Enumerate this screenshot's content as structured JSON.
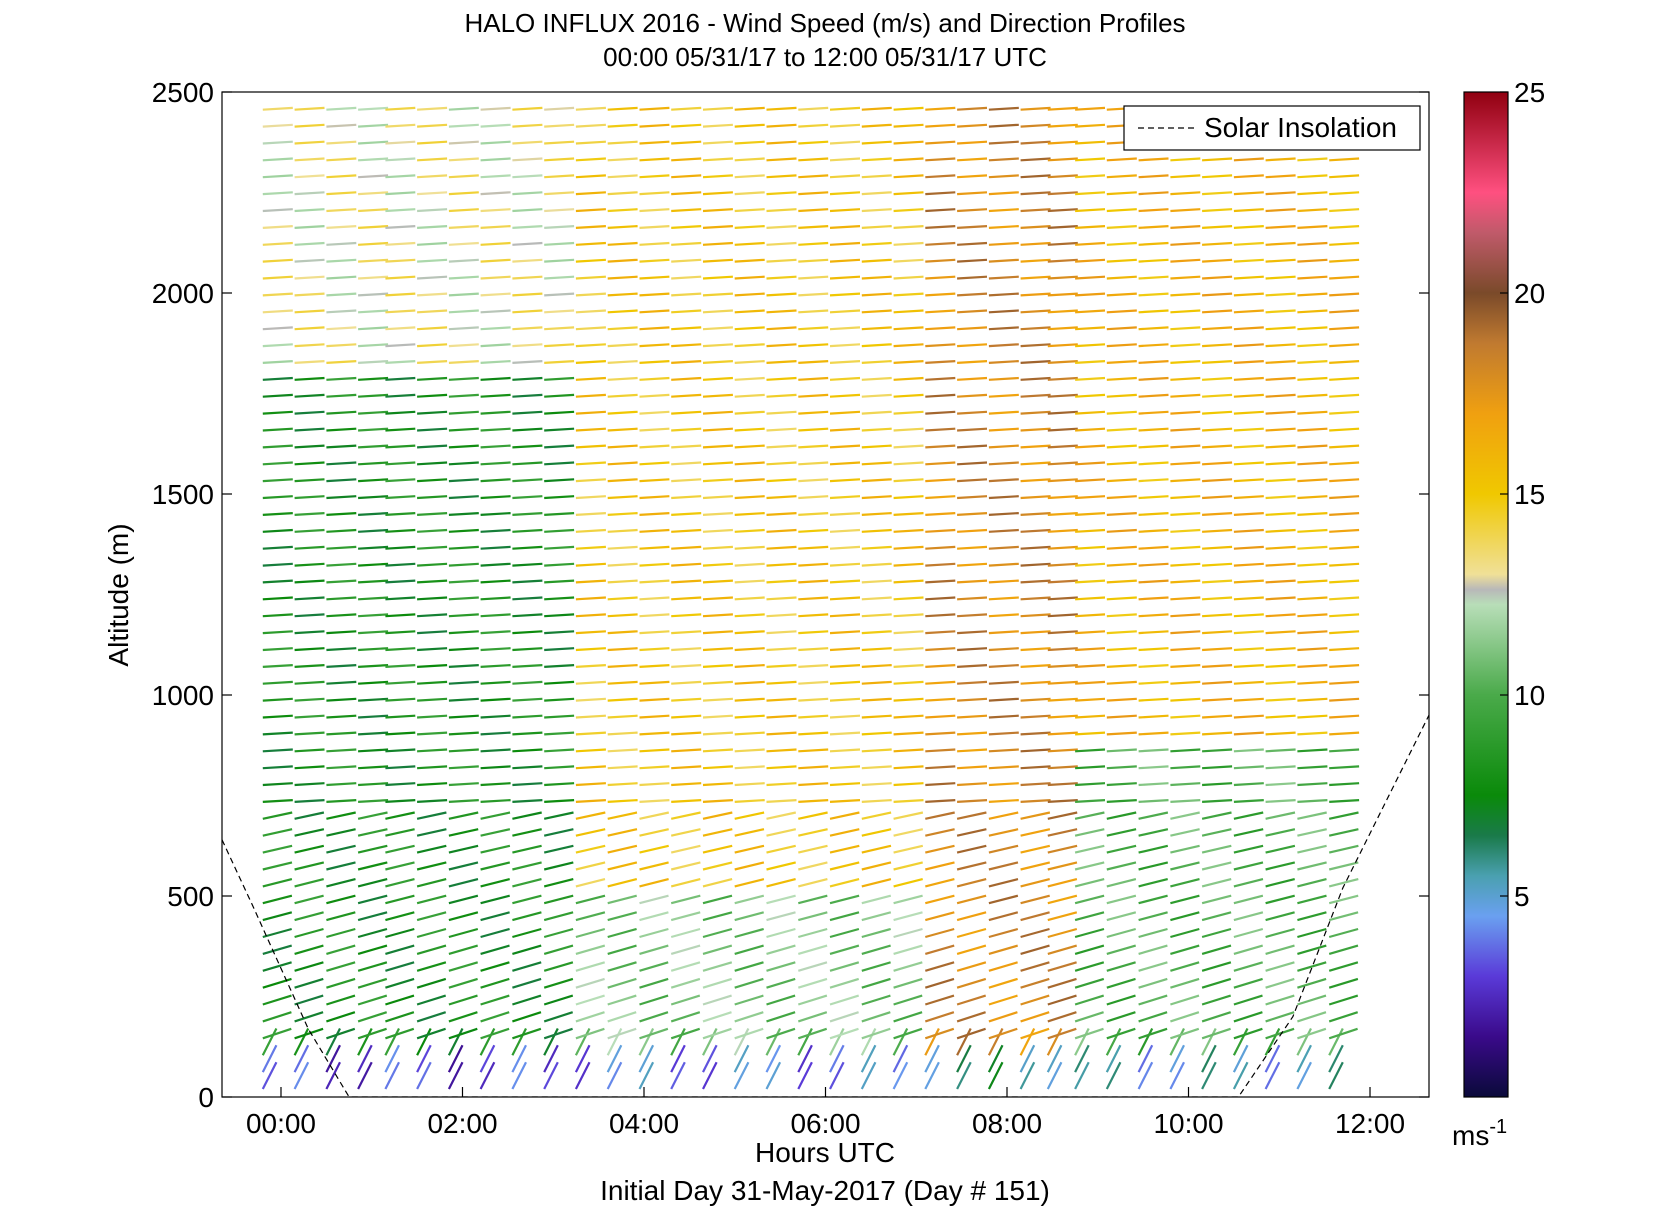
{
  "chart_data": {
    "type": "wind-barb profile",
    "title_line1": "HALO INFLUX 2016 - Wind Speed (m/s) and Direction Profiles",
    "title_line2": "00:00 05/31/17 to 12:00 05/31/17  UTC",
    "xlabel": "Hours UTC",
    "xlabel_sub": "Initial Day 31-May-2017 (Day # 151)",
    "ylabel": "Altitude (m)",
    "xlim_hours": [
      -0.65,
      12.65
    ],
    "ylim": [
      0,
      2500
    ],
    "x_ticks": [
      {
        "value": 0,
        "label": "00:00"
      },
      {
        "value": 2,
        "label": "02:00"
      },
      {
        "value": 4,
        "label": "04:00"
      },
      {
        "value": 6,
        "label": "06:00"
      },
      {
        "value": 8,
        "label": "08:00"
      },
      {
        "value": 10,
        "label": "10:00"
      },
      {
        "value": 12,
        "label": "12:00"
      }
    ],
    "y_ticks": [
      {
        "value": 0,
        "label": "0"
      },
      {
        "value": 500,
        "label": "500"
      },
      {
        "value": 1000,
        "label": "1000"
      },
      {
        "value": 1500,
        "label": "1500"
      },
      {
        "value": 2000,
        "label": "2000"
      },
      {
        "value": 2500,
        "label": "2500"
      }
    ],
    "colorbar": {
      "range": [
        0,
        25
      ],
      "ticks": [
        {
          "value": 5,
          "label": "5"
        },
        {
          "value": 10,
          "label": "10"
        },
        {
          "value": 15,
          "label": "15"
        },
        {
          "value": 20,
          "label": "20"
        },
        {
          "value": 25,
          "label": "25"
        }
      ],
      "unit": "ms",
      "unit_exp": "-1"
    },
    "legend": {
      "entries": [
        "Solar Insolation"
      ],
      "placement": "top-right",
      "style": "black dashed line"
    },
    "solar_insolation": [
      {
        "x": -0.65,
        "y": 640
      },
      {
        "x": -0.3,
        "y": 470
      },
      {
        "x": 0.3,
        "y": 170
      },
      {
        "x": 0.75,
        "y": 0
      },
      {
        "x": 10.55,
        "y": 0
      },
      {
        "x": 11.15,
        "y": 200
      },
      {
        "x": 11.7,
        "y": 520
      },
      {
        "x": 12.65,
        "y": 950
      }
    ],
    "profile_times_hours": [
      -0.2,
      0.15,
      0.5,
      0.85,
      1.15,
      1.5,
      1.85,
      2.2,
      2.55,
      2.9,
      3.25,
      3.6,
      3.95,
      4.3,
      4.65,
      5.0,
      5.35,
      5.7,
      6.05,
      6.4,
      6.75,
      7.1,
      7.45,
      7.8,
      8.15,
      8.45,
      8.75,
      9.1,
      9.45,
      9.8,
      10.15,
      10.5,
      10.85,
      11.2,
      11.55
    ],
    "altitude_step_m": 42,
    "speed_regimes_ms": [
      {
        "hours": [
          -0.2,
          3.1
        ],
        "altitude": [
          0,
          80
        ],
        "speed": 3
      },
      {
        "hours": [
          -0.2,
          3.1
        ],
        "altitude": [
          80,
          1800
        ],
        "speed": 8
      },
      {
        "hours": [
          -0.2,
          3.1
        ],
        "altitude": [
          1800,
          2500
        ],
        "speed": 13
      },
      {
        "hours": [
          3.1,
          6.8
        ],
        "altitude": [
          0,
          100
        ],
        "speed": 4
      },
      {
        "hours": [
          3.1,
          6.8
        ],
        "altitude": [
          100,
          500
        ],
        "speed": 11
      },
      {
        "hours": [
          3.1,
          6.8
        ],
        "altitude": [
          500,
          2500
        ],
        "speed": 15
      },
      {
        "hours": [
          6.8,
          8.5
        ],
        "altitude": [
          0,
          100
        ],
        "speed": 6
      },
      {
        "hours": [
          6.8,
          8.5
        ],
        "altitude": [
          100,
          2500
        ],
        "speed": 18
      },
      {
        "hours": [
          8.5,
          11.75
        ],
        "altitude": [
          0,
          100
        ],
        "speed": 5
      },
      {
        "hours": [
          8.5,
          11.75
        ],
        "altitude": [
          100,
          900
        ],
        "speed": 10
      },
      {
        "hours": [
          8.5,
          11.75
        ],
        "altitude": [
          900,
          2500
        ],
        "speed": 16
      }
    ]
  }
}
